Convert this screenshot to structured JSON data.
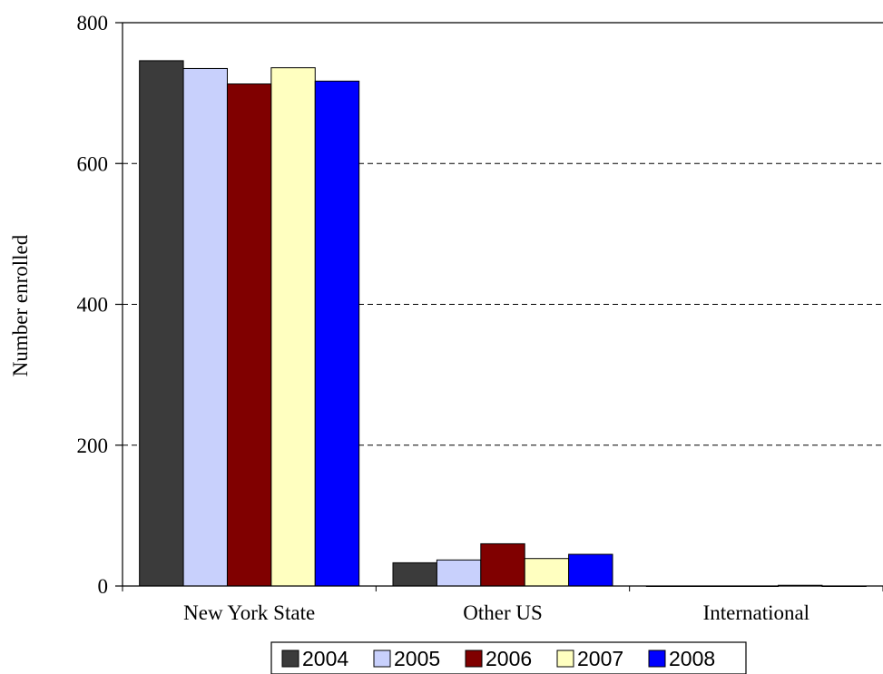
{
  "chart_data": {
    "type": "bar",
    "title": "",
    "xlabel": "",
    "ylabel": "Number enrolled",
    "ylim": [
      0,
      800
    ],
    "yticks": [
      0,
      200,
      400,
      600,
      800
    ],
    "grid": "horizontal dashed",
    "legend_position": "bottom",
    "categories": [
      "New York State",
      "Other US",
      "International"
    ],
    "series": [
      {
        "name": "2004",
        "color": "#3b3b3b",
        "values": [
          746,
          33,
          0
        ]
      },
      {
        "name": "2005",
        "color": "#c8d0fc",
        "values": [
          735,
          37,
          0
        ]
      },
      {
        "name": "2006",
        "color": "#800000",
        "values": [
          713,
          60,
          0
        ]
      },
      {
        "name": "2007",
        "color": "#ffffc0",
        "values": [
          736,
          39,
          1
        ]
      },
      {
        "name": "2008",
        "color": "#0000ff",
        "values": [
          717,
          45,
          0
        ]
      }
    ]
  }
}
